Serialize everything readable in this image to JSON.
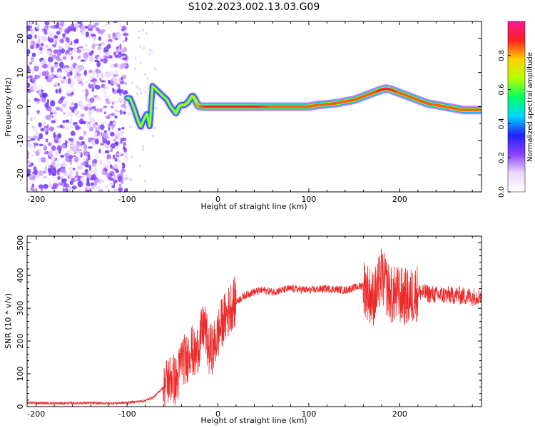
{
  "figure_title": "S102.2023.002.13.03.G09",
  "colors": {
    "snr_line": "#ee2b2b",
    "axis": "#000000",
    "spectral_signal": "#ff1a1a",
    "spectral_noise": "#7a00ff",
    "colorbar_stops": [
      "#ffffff",
      "#e9d7ff",
      "#8c40ff",
      "#2020ff",
      "#00d8ff",
      "#00ff60",
      "#b8ff00",
      "#ffd000",
      "#ff2020",
      "#ff1493"
    ]
  },
  "chart_data": [
    {
      "type": "heatmap",
      "title": "S102.2023.002.13.03.G09",
      "xlabel": "Height of straight line (km)",
      "ylabel": "Frequency (Hz)",
      "xlim": [
        -210,
        290
      ],
      "ylim": [
        -25,
        25
      ],
      "x_ticks": [
        -200,
        -100,
        0,
        100,
        200
      ],
      "x_tick_labels": [
        "-200",
        "-100",
        "0",
        "100",
        "200"
      ],
      "y_ticks": [
        -20,
        -10,
        0,
        10,
        20
      ],
      "y_tick_labels": [
        "-20",
        "-10",
        "0",
        "10",
        "20"
      ],
      "grid": false,
      "colorbar": {
        "label": "Normalized spectral amplitude",
        "range": [
          0,
          1
        ],
        "ticks": [
          0,
          0.2,
          0.4,
          0.6,
          0.8
        ],
        "tick_labels": [
          "0.0",
          "0.2",
          "0.4",
          "0.6",
          "0.8"
        ]
      },
      "noise_region": {
        "x_range": [
          -210,
          -100
        ],
        "freq_range": [
          -25,
          25
        ],
        "amplitude": 0.25
      },
      "signal_trace": {
        "x": [
          -100,
          -97,
          -93,
          -88,
          -85,
          -82,
          -78,
          -75,
          -72,
          -68,
          -64,
          -60,
          -56,
          -52,
          -49,
          -46,
          -43,
          -40,
          -37,
          -34,
          -31,
          -29,
          -27,
          -25,
          -22,
          -18,
          -10,
          0,
          20,
          40,
          60,
          80,
          100,
          110,
          120,
          130,
          140,
          150,
          160,
          170,
          180,
          185,
          190,
          200,
          210,
          220,
          230,
          240,
          250,
          260,
          270,
          280,
          290
        ],
        "frequency": [
          2.5,
          2.5,
          0,
          -4,
          -6,
          -4,
          -2,
          -6,
          6,
          5,
          4,
          3,
          2,
          0,
          -1,
          -2,
          0,
          0.5,
          0.5,
          1,
          2,
          3,
          3,
          2,
          0.3,
          0,
          0,
          0,
          0,
          0,
          0,
          0,
          0,
          0.5,
          0.7,
          1,
          1.5,
          2,
          3,
          4,
          5,
          5.3,
          5,
          4,
          3,
          2,
          1,
          0.5,
          0,
          -0.5,
          -1,
          -1,
          -1
        ],
        "amplitude": [
          0.5,
          0.55,
          0.4,
          0.45,
          0.5,
          0.4,
          0.35,
          0.4,
          0.5,
          0.45,
          0.45,
          0.45,
          0.45,
          0.5,
          0.55,
          0.6,
          0.6,
          0.6,
          0.6,
          0.6,
          0.6,
          0.6,
          0.65,
          0.7,
          0.8,
          0.85,
          0.9,
          0.9,
          0.9,
          0.9,
          0.85,
          0.85,
          0.85,
          0.85,
          0.85,
          0.85,
          0.85,
          0.85,
          0.85,
          0.85,
          0.9,
          0.9,
          0.9,
          0.85,
          0.85,
          0.85,
          0.85,
          0.85,
          0.85,
          0.85,
          0.85,
          0.85,
          0.85
        ]
      }
    },
    {
      "type": "line",
      "title": "",
      "xlabel": "Height of straight line (km)",
      "ylabel": "SNR (10 * v/v)",
      "xlim": [
        -210,
        290
      ],
      "ylim": [
        0,
        520
      ],
      "x_ticks": [
        -200,
        -100,
        0,
        100,
        200
      ],
      "x_tick_labels": [
        "-200",
        "-100",
        "0",
        "100",
        "200"
      ],
      "y_ticks": [
        0,
        100,
        200,
        300,
        400,
        500
      ],
      "y_tick_labels": [
        "0",
        "100",
        "200",
        "300",
        "400",
        "500"
      ],
      "grid": false,
      "series": [
        {
          "x": [
            -210,
            -180,
            -150,
            -120,
            -100,
            -80,
            -70,
            -60,
            -55,
            -50,
            -45,
            -40,
            -35,
            -30,
            -25,
            -20,
            -15,
            -10,
            -5,
            0,
            5,
            10,
            15,
            20,
            25,
            30,
            35,
            40,
            50,
            60,
            80,
            100,
            120,
            140,
            160,
            170,
            175,
            180,
            190,
            200,
            210,
            220,
            240,
            260,
            280,
            290
          ],
          "values": [
            12,
            10,
            11,
            10,
            12,
            18,
            30,
            60,
            80,
            90,
            70,
            150,
            140,
            180,
            150,
            200,
            250,
            170,
            180,
            220,
            260,
            280,
            310,
            320,
            330,
            340,
            345,
            350,
            355,
            350,
            360,
            355,
            360,
            355,
            370,
            330,
            350,
            400,
            340,
            340,
            330,
            350,
            340,
            340,
            335,
            340
          ]
        }
      ]
    }
  ]
}
